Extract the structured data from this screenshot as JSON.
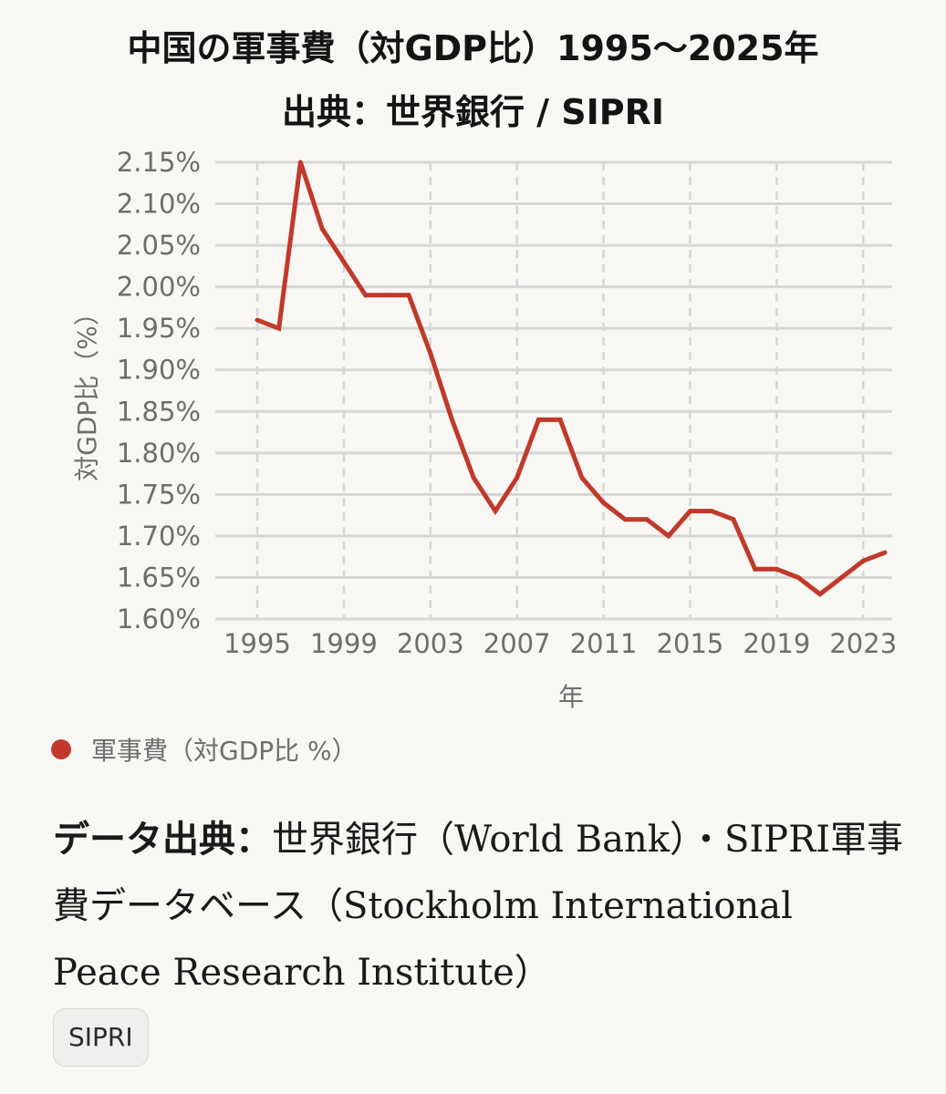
{
  "title_line1": "中国の軍事費（対GDP比）1995〜2025年",
  "title_line2": "出典：世界銀行 / SIPRI",
  "legend_label": "軍事費（対GDP比 %）",
  "source_label": "データ出典：",
  "source_text": "世界銀行（World Bank）・SIPRI軍事費データベース（Stockholm International Peace Research Institute）",
  "badge": "SIPRI",
  "colors": {
    "line": "#c0392b",
    "grid": "#d6d6d6"
  },
  "chart_data": {
    "type": "line",
    "xlabel": "年",
    "ylabel": "対GDP比（%）",
    "xlim": [
      1995,
      2024
    ],
    "ylim": [
      1.6,
      2.15
    ],
    "x_ticks": [
      1995,
      1999,
      2003,
      2007,
      2011,
      2015,
      2019,
      2023
    ],
    "y_ticks": [
      1.6,
      1.65,
      1.7,
      1.75,
      1.8,
      1.85,
      1.9,
      1.95,
      2.0,
      2.05,
      2.1,
      2.15
    ],
    "y_tick_labels": [
      "1.60%",
      "1.65%",
      "1.70%",
      "1.75%",
      "1.80%",
      "1.85%",
      "1.90%",
      "1.95%",
      "2.00%",
      "2.05%",
      "2.10%",
      "2.15%"
    ],
    "grid": true,
    "legend_position": "bottom-left",
    "series": [
      {
        "name": "軍事費（対GDP比 %）",
        "x": [
          1995,
          1996,
          1997,
          1998,
          1999,
          2000,
          2001,
          2002,
          2003,
          2004,
          2005,
          2006,
          2007,
          2008,
          2009,
          2010,
          2011,
          2012,
          2013,
          2014,
          2015,
          2016,
          2017,
          2018,
          2019,
          2020,
          2021,
          2022,
          2023,
          2024
        ],
        "values": [
          1.96,
          1.95,
          2.15,
          2.07,
          2.03,
          1.99,
          1.99,
          1.99,
          1.92,
          1.84,
          1.77,
          1.73,
          1.77,
          1.84,
          1.84,
          1.77,
          1.74,
          1.72,
          1.72,
          1.7,
          1.73,
          1.73,
          1.72,
          1.66,
          1.66,
          1.65,
          1.63,
          1.65,
          1.67,
          1.68
        ]
      }
    ]
  }
}
